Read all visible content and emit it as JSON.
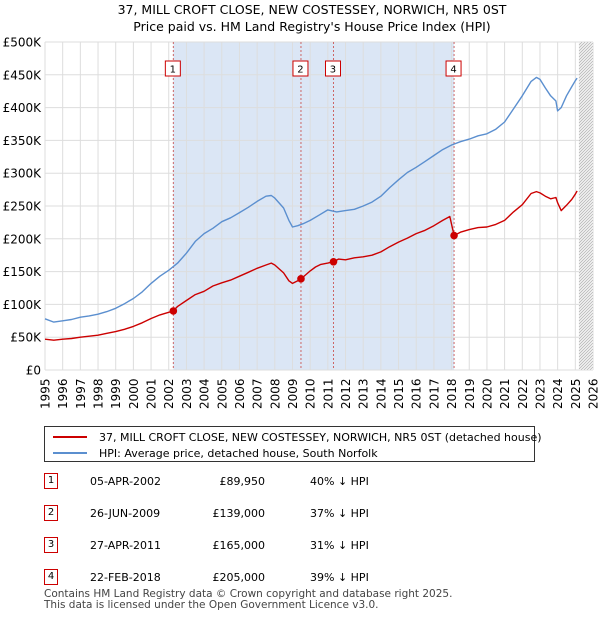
{
  "chart_data": {
    "type": "line",
    "title": "37, MILL CROFT CLOSE, NEW COSTESSEY, NORWICH, NR5 0ST",
    "subtitle": "Price paid vs. HM Land Registry's House Price Index (HPI)",
    "xlabel": "",
    "ylabel": "",
    "xlim": [
      1995,
      2026
    ],
    "ylim": [
      0,
      500000
    ],
    "x_ticks": [
      "1995",
      "1996",
      "1997",
      "1998",
      "1999",
      "2000",
      "2001",
      "2002",
      "2003",
      "2004",
      "2005",
      "2006",
      "2007",
      "2008",
      "2009",
      "2010",
      "2011",
      "2012",
      "2013",
      "2014",
      "2015",
      "2016",
      "2017",
      "2018",
      "2019",
      "2020",
      "2021",
      "2022",
      "2023",
      "2024",
      "2025",
      "2026"
    ],
    "y_tick_values": [
      0,
      50000,
      100000,
      150000,
      200000,
      250000,
      300000,
      350000,
      400000,
      450000,
      500000
    ],
    "y_tick_labels": [
      "£0",
      "£50K",
      "£100K",
      "£150K",
      "£200K",
      "£250K",
      "£300K",
      "£350K",
      "£400K",
      "£450K",
      "£500K"
    ],
    "grid": true,
    "shaded_span": {
      "from": 2002.26,
      "to": 2018.14,
      "color": "#dbe6f5"
    },
    "future_hatch_from": 2025.2,
    "series": [
      {
        "name": "37, MILL CROFT CLOSE, NEW COSTESSEY, NORWICH, NR5 0ST (detached house)",
        "color": "#cc0000",
        "x": [
          1995,
          1995.5,
          1996,
          1996.5,
          1997,
          1997.5,
          1998,
          1998.5,
          1999,
          1999.5,
          2000,
          2000.5,
          2001,
          2001.5,
          2002,
          2002.26,
          2002.5,
          2003,
          2003.5,
          2004,
          2004.5,
          2005,
          2005.5,
          2006,
          2006.5,
          2007,
          2007.5,
          2007.8,
          2008,
          2008.5,
          2008.8,
          2009,
          2009.3,
          2009.48,
          2009.7,
          2010,
          2010.3,
          2010.6,
          2011,
          2011.32,
          2011.6,
          2012,
          2012.5,
          2013,
          2013.5,
          2014,
          2014.5,
          2015,
          2015.5,
          2016,
          2016.5,
          2017,
          2017.5,
          2017.9,
          2018.14,
          2018.5,
          2019,
          2019.5,
          2020,
          2020.5,
          2021,
          2021.5,
          2022,
          2022.5,
          2022.8,
          2023,
          2023.3,
          2023.6,
          2023.9,
          2024,
          2024.2,
          2024.5,
          2024.8,
          2025,
          2025.1
        ],
        "values": [
          47000,
          45500,
          47000,
          48000,
          50000,
          51500,
          53000,
          56000,
          58500,
          62000,
          66500,
          72000,
          78500,
          84000,
          88000,
          89950,
          97000,
          106000,
          115000,
          120000,
          128000,
          133000,
          137000,
          143000,
          149000,
          155000,
          160000,
          163000,
          160000,
          148000,
          136000,
          132000,
          136000,
          139000,
          144000,
          151000,
          157000,
          161000,
          163000,
          165000,
          169000,
          168000,
          171000,
          172500,
          175000,
          180000,
          188000,
          195000,
          201000,
          208000,
          213000,
          220000,
          228000,
          234000,
          205000,
          210000,
          214000,
          217000,
          218000,
          222000,
          228000,
          241000,
          252000,
          269000,
          272000,
          270000,
          265000,
          261000,
          263000,
          255000,
          243000,
          251000,
          260000,
          268000,
          273000
        ]
      },
      {
        "name": "HPI: Average price, detached house, South Norfolk",
        "color": "#5b8fcf",
        "x": [
          1995,
          1995.5,
          1996,
          1996.5,
          1997,
          1997.5,
          1998,
          1998.5,
          1999,
          1999.5,
          2000,
          2000.5,
          2001,
          2001.5,
          2002,
          2002.5,
          2003,
          2003.5,
          2004,
          2004.5,
          2005,
          2005.5,
          2006,
          2006.5,
          2007,
          2007.5,
          2007.8,
          2008,
          2008.5,
          2008.8,
          2009,
          2009.3,
          2009.6,
          2010,
          2010.5,
          2011,
          2011.5,
          2012,
          2012.5,
          2013,
          2013.5,
          2014,
          2014.5,
          2015,
          2015.5,
          2016,
          2016.5,
          2017,
          2017.5,
          2018,
          2018.5,
          2019,
          2019.5,
          2020,
          2020.5,
          2021,
          2021.5,
          2022,
          2022.5,
          2022.8,
          2023,
          2023.3,
          2023.6,
          2023.9,
          2024,
          2024.2,
          2024.5,
          2024.8,
          2025,
          2025.1
        ],
        "values": [
          78000,
          73000,
          75000,
          77000,
          80500,
          82500,
          85000,
          89000,
          94000,
          101000,
          109000,
          119000,
          132000,
          143000,
          152000,
          163000,
          178000,
          196000,
          208000,
          216000,
          226000,
          232000,
          240000,
          248000,
          257000,
          265000,
          266000,
          262000,
          247000,
          228000,
          218000,
          220000,
          223000,
          228000,
          236000,
          244000,
          241000,
          243000,
          245000,
          250000,
          256000,
          265000,
          278000,
          290000,
          301000,
          309000,
          318000,
          327000,
          336000,
          343000,
          348000,
          352000,
          357000,
          360000,
          367000,
          378000,
          398000,
          418000,
          440000,
          446000,
          443000,
          430000,
          418000,
          410000,
          395000,
          400000,
          418000,
          432000,
          441000,
          445000
        ]
      }
    ],
    "sales": [
      {
        "label": "1",
        "x": 2002.26,
        "value": 89950
      },
      {
        "label": "2",
        "x": 2009.48,
        "value": 139000
      },
      {
        "label": "3",
        "x": 2011.32,
        "value": 165000
      },
      {
        "label": "4",
        "x": 2018.14,
        "value": 205000
      }
    ]
  },
  "legend": {
    "property_label": "37, MILL CROFT CLOSE, NEW COSTESSEY, NORWICH, NR5 0ST (detached house)",
    "hpi_label": "HPI: Average price, detached house, South Norfolk"
  },
  "transactions": [
    {
      "num": "1",
      "date": "05-APR-2002",
      "price": "£89,950",
      "hpi": "40% ↓ HPI"
    },
    {
      "num": "2",
      "date": "26-JUN-2009",
      "price": "£139,000",
      "hpi": "37% ↓ HPI"
    },
    {
      "num": "3",
      "date": "27-APR-2011",
      "price": "£165,000",
      "hpi": "31% ↓ HPI"
    },
    {
      "num": "4",
      "date": "22-FEB-2018",
      "price": "£205,000",
      "hpi": "39% ↓ HPI"
    }
  ],
  "footer": {
    "line1": "Contains HM Land Registry data © Crown copyright and database right 2025.",
    "line2": "This data is licensed under the Open Government Licence v3.0."
  },
  "colors": {
    "property": "#cc0000",
    "hpi": "#5b8fcf",
    "shade": "#dbe6f5",
    "grid": "#dddddd"
  }
}
